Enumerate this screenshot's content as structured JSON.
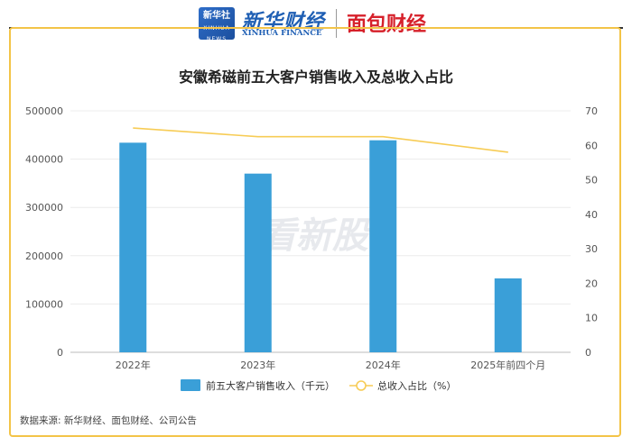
{
  "header": {
    "logo_xinhua_badge": "新华社",
    "logo_xinhua_badge_sub": "XINHUA NEWS",
    "logo_xinhua_cn": "新华财经",
    "logo_xinhua_en": "XINHUA FINANCE",
    "logo_mianbao": "面包财经"
  },
  "watermark": "看新股",
  "source": "数据来源: 新华财经、面包财经、公司公告",
  "colors": {
    "bar": "#3a9fd8",
    "line": "#f7cc55",
    "frame": "#f3c448"
  },
  "chart_data": {
    "type": "bar",
    "title": "安徽希磁前五大客户销售收入及总收入占比",
    "categories": [
      "2022年",
      "2023年",
      "2024年",
      "2025年前四个月"
    ],
    "series": [
      {
        "name": "前五大客户销售收入（千元）",
        "type": "bar",
        "axis": "left",
        "values": [
          434000,
          370000,
          439000,
          153000
        ]
      },
      {
        "name": "总收入占比（%）",
        "type": "line",
        "axis": "right",
        "values": [
          65,
          62.5,
          62.5,
          58
        ]
      }
    ],
    "left_axis": {
      "ylim": [
        0,
        500000
      ],
      "ticks": [
        "0",
        "100000",
        "200000",
        "300000",
        "400000",
        "500000"
      ]
    },
    "right_axis": {
      "ylim": [
        0,
        70
      ],
      "ticks": [
        "0",
        "10",
        "20",
        "30",
        "40",
        "50",
        "60",
        "70"
      ]
    },
    "grid": true,
    "legend_position": "bottom"
  }
}
